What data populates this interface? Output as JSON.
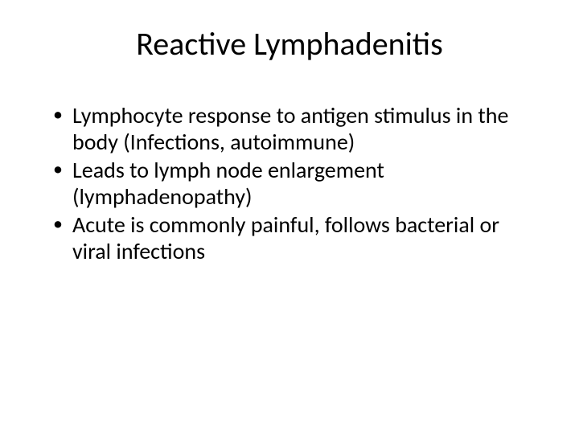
{
  "slide": {
    "title": "Reactive Lymphadenitis",
    "bullets": [
      "Lymphocyte response to antigen stimulus in the body (Infections, autoimmune)",
      "Leads to lymph node enlargement (lymphadenopathy)",
      "Acute is commonly painful, follows bacterial or viral infections"
    ],
    "background_color": "#ffffff",
    "text_color": "#000000",
    "title_fontsize": 40,
    "body_fontsize": 28,
    "font_family": "Calibri"
  }
}
